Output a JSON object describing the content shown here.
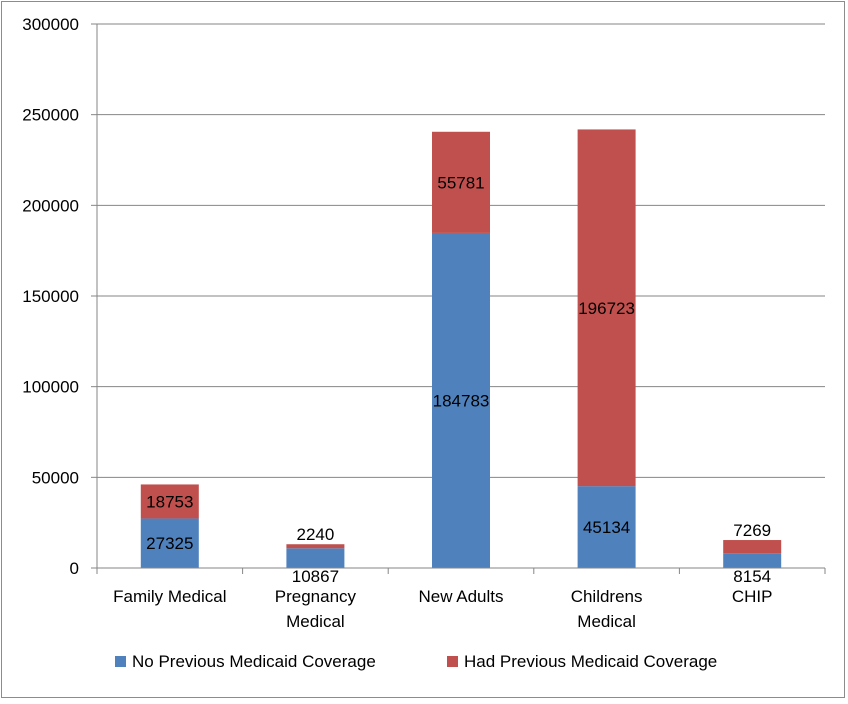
{
  "chart_data": {
    "type": "bar",
    "stacked": true,
    "title": "",
    "xlabel": "",
    "ylabel": "",
    "ylim": [
      0,
      300000
    ],
    "yticks": [
      0,
      50000,
      100000,
      150000,
      200000,
      250000,
      300000
    ],
    "grid": true,
    "legend_position": "bottom",
    "categories": [
      [
        "Family Medical"
      ],
      [
        "Pregnancy",
        "Medical"
      ],
      [
        "New Adults"
      ],
      [
        "Childrens",
        "Medical"
      ],
      [
        "CHIP"
      ]
    ],
    "series": [
      {
        "name": "No Previous Medicaid Coverage",
        "color": "#4f81bd",
        "values": [
          27325,
          10867,
          184783,
          45134,
          8154
        ]
      },
      {
        "name": "Had Previous Medicaid Coverage",
        "color": "#c0504d",
        "values": [
          18753,
          2240,
          55781,
          196723,
          7269
        ]
      }
    ]
  }
}
